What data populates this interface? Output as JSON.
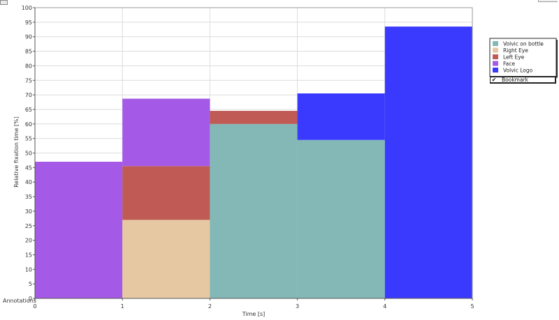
{
  "ui": {
    "bookmark_label": "Bookmark",
    "bookmark_checked": true,
    "annotations_label": "Annotations"
  },
  "chart_data": {
    "type": "bar",
    "stacked": true,
    "xlabel": "Time [s]",
    "ylabel": "Relative fixation time [%]",
    "xlim": [
      0,
      5
    ],
    "ylim": [
      0,
      100
    ],
    "xticks": [
      0,
      1,
      2,
      3,
      4,
      5
    ],
    "yticks": [
      0,
      5,
      10,
      15,
      20,
      25,
      30,
      35,
      40,
      45,
      50,
      55,
      60,
      65,
      70,
      75,
      80,
      85,
      90,
      95,
      100
    ],
    "grid": true,
    "legend_position": "top-right outside",
    "bins": [
      [
        0,
        1
      ],
      [
        1,
        2
      ],
      [
        2,
        3
      ],
      [
        3,
        4
      ],
      [
        4,
        5
      ]
    ],
    "series": [
      {
        "name": "Volvic on bottle",
        "color": "#83b8b6",
        "values": [
          0,
          0,
          60,
          54.5,
          0
        ]
      },
      {
        "name": "Right Eye",
        "color": "#e6c9a3",
        "values": [
          0,
          27,
          0,
          0,
          0
        ]
      },
      {
        "name": "Left Eye",
        "color": "#bf5a55",
        "values": [
          0,
          18.5,
          4.5,
          0,
          0
        ]
      },
      {
        "name": "Face",
        "color": "#a45ae6",
        "values": [
          47,
          23.2,
          0,
          0,
          0
        ]
      },
      {
        "name": "Volvic Logo",
        "color": "#3a3aff",
        "values": [
          0,
          0,
          0,
          16,
          93.5
        ]
      }
    ]
  }
}
